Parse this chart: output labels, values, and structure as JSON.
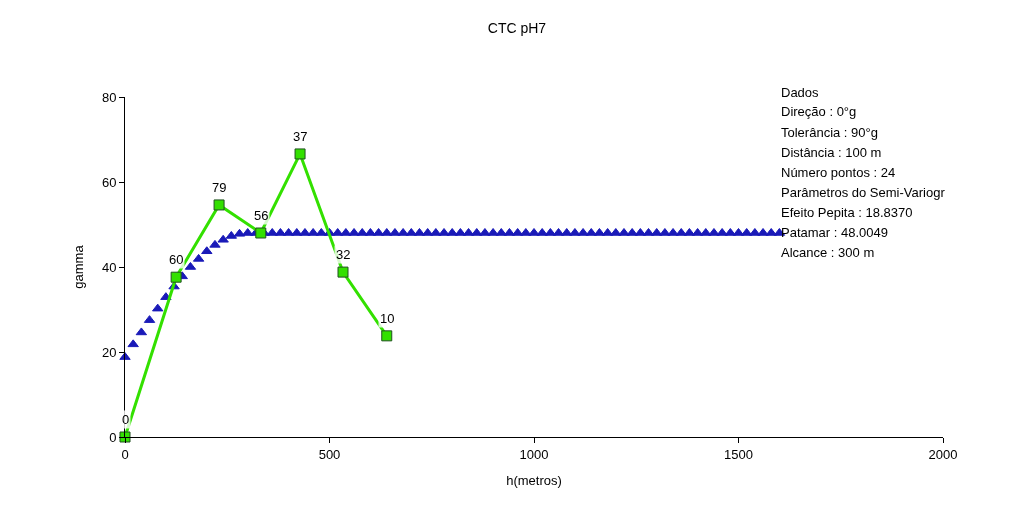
{
  "chart_data": {
    "type": "line",
    "title": "CTC pH7",
    "xlabel": "h(metros)",
    "ylabel": "gamma",
    "xlim": [
      0,
      2000
    ],
    "xticks": [
      0,
      500,
      1000,
      1500,
      2000
    ],
    "ylim": [
      0,
      80
    ],
    "yticks": [
      0,
      20,
      40,
      60,
      80
    ],
    "legend": false,
    "series": [
      {
        "type": "scatter",
        "marker": "triangle",
        "color": "#1a1ab8",
        "x": [
          0,
          20,
          40,
          60,
          80,
          100,
          120,
          140,
          160,
          180,
          200,
          220,
          240,
          260,
          280,
          300,
          320,
          340,
          360,
          380,
          400,
          420,
          440,
          460,
          480,
          500,
          520,
          540,
          560,
          580,
          600,
          620,
          640,
          660,
          680,
          700,
          720,
          740,
          760,
          780,
          800,
          820,
          840,
          860,
          880,
          900,
          920,
          940,
          960,
          980,
          1000,
          1020,
          1040,
          1060,
          1080,
          1100,
          1120,
          1140,
          1160,
          1180,
          1200,
          1220,
          1240,
          1260,
          1280,
          1300,
          1320,
          1340,
          1360,
          1380,
          1400,
          1420,
          1440,
          1460,
          1480,
          1500,
          1520,
          1540,
          1560,
          1580,
          1600
        ],
        "values": [
          18.8,
          21.8,
          24.6,
          27.5,
          30.2,
          32.9,
          35.4,
          37.8,
          40.0,
          41.9,
          43.7,
          45.2,
          46.4,
          47.3,
          47.8,
          48.0,
          48.0,
          48.0,
          48.0,
          48.0,
          48.0,
          48.0,
          48.0,
          48.0,
          48.0,
          48.0,
          48.0,
          48.0,
          48.0,
          48.0,
          48.0,
          48.0,
          48.0,
          48.0,
          48.0,
          48.0,
          48.0,
          48.0,
          48.0,
          48.0,
          48.0,
          48.0,
          48.0,
          48.0,
          48.0,
          48.0,
          48.0,
          48.0,
          48.0,
          48.0,
          48.0,
          48.0,
          48.0,
          48.0,
          48.0,
          48.0,
          48.0,
          48.0,
          48.0,
          48.0,
          48.0,
          48.0,
          48.0,
          48.0,
          48.0,
          48.0,
          48.0,
          48.0,
          48.0,
          48.0,
          48.0,
          48.0,
          48.0,
          48.0,
          48.0,
          48.0,
          48.0,
          48.0,
          48.0,
          48.0,
          48.0
        ]
      },
      {
        "marker": "square",
        "color": "#33e000",
        "x": [
          0,
          125,
          230,
          332,
          428,
          533,
          640
        ],
        "values": [
          0,
          37.6,
          54.6,
          48,
          66.6,
          38.8,
          23.8
        ]
      }
    ],
    "annotations": [
      {
        "text": "0",
        "x": 0,
        "y": 0
      },
      {
        "text": "60",
        "x": 125,
        "y": 37.6
      },
      {
        "text": "79",
        "x": 230,
        "y": 54.6
      },
      {
        "text": "56",
        "x": 332,
        "y": 48
      },
      {
        "text": "37",
        "x": 428,
        "y": 66.6
      },
      {
        "text": "32",
        "x": 533,
        "y": 38.8
      },
      {
        "text": "10",
        "x": 640,
        "y": 23.8
      },
      "Dados",
      "Direção : 0°g",
      "Tolerância : 90°g",
      "Distância : 100 m",
      "Número pontos : 24",
      "Parâmetros do Semi-Variogr",
      "Efeito Pepita : 18.8370",
      "Patamar : 48.0049",
      "Alcance : 300 m"
    ]
  }
}
